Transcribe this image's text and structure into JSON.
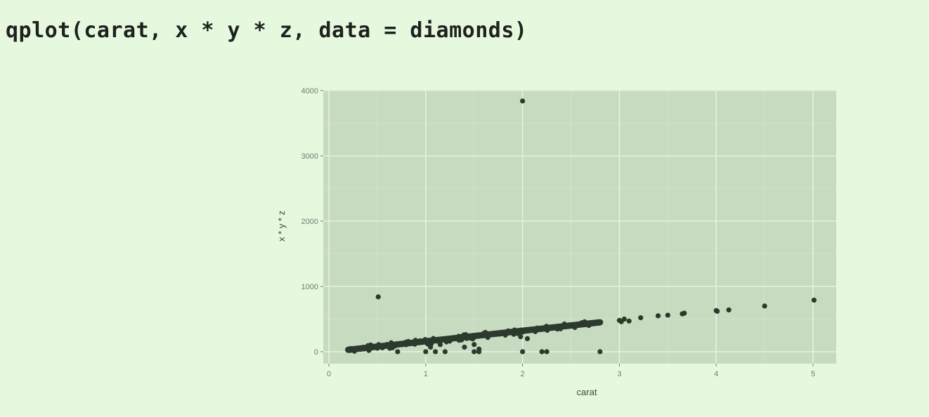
{
  "code_line": "qplot(carat, x * y * z, data = diamonds)",
  "colors": {
    "background": "#e6f9df",
    "panel": "#c7dbc1",
    "grid": "#e4f3df",
    "point": "#2c3a2e",
    "tick": "#6f7a70"
  },
  "chart_data": {
    "type": "scatter",
    "xlabel": "carat",
    "ylabel": "x * y * z",
    "xlim": [
      0,
      5.2
    ],
    "ylim": [
      -100,
      4200
    ],
    "x_ticks": [
      0,
      1,
      2,
      3,
      4,
      5
    ],
    "y_ticks": [
      0,
      1000,
      2000,
      3000,
      4000
    ],
    "grid": true,
    "legend": "none",
    "main_trend": {
      "x_start": 0.2,
      "y_start": 30,
      "x_end": 2.8,
      "y_end": 450,
      "note_band": "dense cloud of points along the trend"
    },
    "points": [
      [
        2.0,
        3840
      ],
      [
        0.51,
        840
      ],
      [
        2.0,
        0
      ],
      [
        2.2,
        0
      ],
      [
        2.25,
        0
      ],
      [
        2.8,
        0
      ],
      [
        0.71,
        0
      ],
      [
        1.0,
        0
      ],
      [
        1.1,
        0
      ],
      [
        1.2,
        0
      ],
      [
        1.5,
        0
      ],
      [
        1.55,
        0
      ],
      [
        1.05,
        70
      ],
      [
        1.15,
        110
      ],
      [
        1.4,
        70
      ],
      [
        1.55,
        40
      ],
      [
        1.5,
        110
      ],
      [
        1.98,
        230
      ],
      [
        2.05,
        200
      ],
      [
        2.0,
        300
      ],
      [
        3.0,
        480
      ],
      [
        3.02,
        460
      ],
      [
        3.05,
        500
      ],
      [
        3.1,
        470
      ],
      [
        3.22,
        520
      ],
      [
        3.4,
        550
      ],
      [
        3.5,
        560
      ],
      [
        3.65,
        580
      ],
      [
        3.67,
        590
      ],
      [
        4.0,
        630
      ],
      [
        4.01,
        620
      ],
      [
        4.13,
        640
      ],
      [
        4.5,
        700
      ],
      [
        5.01,
        790
      ]
    ]
  }
}
